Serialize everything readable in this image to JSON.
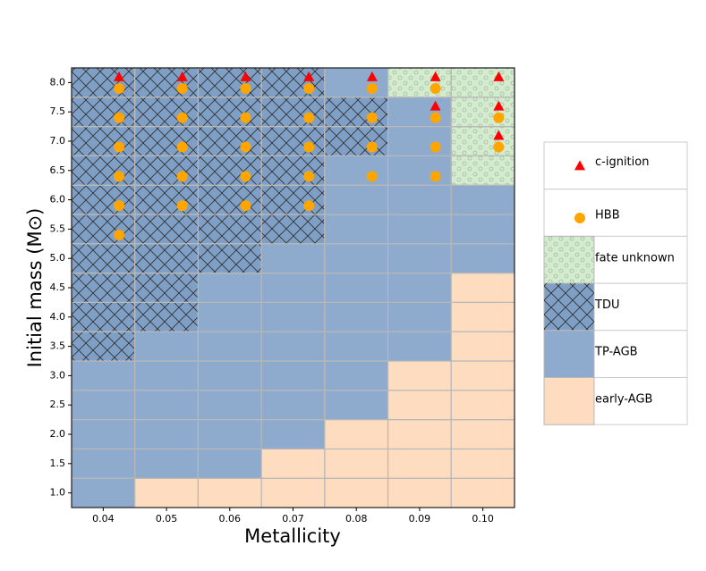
{
  "chart_data": {
    "type": "grid",
    "xlabel": "Metallicity",
    "ylabel": "Initial mass (M⊙)",
    "xlim": [
      0.035,
      0.105
    ],
    "ylim": [
      0.75,
      8.25
    ],
    "xticks": [
      {
        "value": 0.04,
        "label": "0.04"
      },
      {
        "value": 0.05,
        "label": "0.05"
      },
      {
        "value": 0.06,
        "label": "0.06"
      },
      {
        "value": 0.07,
        "label": "0.07"
      },
      {
        "value": 0.08,
        "label": "0.08"
      },
      {
        "value": 0.09,
        "label": "0.09"
      },
      {
        "value": 0.1,
        "label": "0.10"
      }
    ],
    "yticks": [
      {
        "value": 1,
        "label": "1.0"
      },
      {
        "value": 1.5,
        "label": "1.5"
      },
      {
        "value": 2,
        "label": "2.0"
      },
      {
        "value": 2.5,
        "label": "2.5"
      },
      {
        "value": 3,
        "label": "3.0"
      },
      {
        "value": 3.5,
        "label": "3.5"
      },
      {
        "value": 4,
        "label": "4.0"
      },
      {
        "value": 4.5,
        "label": "4.5"
      },
      {
        "value": 5,
        "label": "5.0"
      },
      {
        "value": 5.5,
        "label": "5.5"
      },
      {
        "value": 6,
        "label": "6.0"
      },
      {
        "value": 6.5,
        "label": "6.5"
      },
      {
        "value": 7,
        "label": "7.0"
      },
      {
        "value": 7.5,
        "label": "7.5"
      },
      {
        "value": 8,
        "label": "8.0"
      }
    ],
    "metallicity": [
      0.04,
      0.05,
      0.06,
      0.07,
      0.08,
      0.09,
      0.1
    ],
    "mass": [
      1,
      1.5,
      2,
      2.5,
      3,
      3.5,
      4,
      4.5,
      5,
      5.5,
      6,
      6.5,
      7,
      7.5,
      8
    ],
    "classes": [
      {
        "name": "fate unknown",
        "color": "#d4ebcf",
        "hatch": "dots"
      },
      {
        "name": "TDU",
        "color": "#7f9fc6",
        "hatch": "cross"
      },
      {
        "name": "TP-AGB",
        "color": "#8eabcd"
      },
      {
        "name": "early-AGB",
        "color": "#fddcc0"
      }
    ],
    "cells": [
      [
        "TP-AGB",
        "TP-AGB",
        "TP-AGB",
        "TP-AGB",
        "TP-AGB",
        "TDU",
        "TDU",
        "TDU",
        "TDU",
        "TDU",
        "TDU",
        "TDU",
        "TDU",
        "TDU",
        "TDU"
      ],
      [
        "early-AGB",
        "TP-AGB",
        "TP-AGB",
        "TP-AGB",
        "TP-AGB",
        "TP-AGB",
        "TDU",
        "TDU",
        "TDU",
        "TDU",
        "TDU",
        "TDU",
        "TDU",
        "TDU",
        "TDU"
      ],
      [
        "early-AGB",
        "TP-AGB",
        "TP-AGB",
        "TP-AGB",
        "TP-AGB",
        "TP-AGB",
        "TP-AGB",
        "TP-AGB",
        "TDU",
        "TDU",
        "TDU",
        "TDU",
        "TDU",
        "TDU",
        "TDU"
      ],
      [
        "early-AGB",
        "early-AGB",
        "TP-AGB",
        "TP-AGB",
        "TP-AGB",
        "TP-AGB",
        "TP-AGB",
        "TP-AGB",
        "TP-AGB",
        "TDU",
        "TDU",
        "TDU",
        "TDU",
        "TDU",
        "TDU"
      ],
      [
        "early-AGB",
        "early-AGB",
        "early-AGB",
        "TP-AGB",
        "TP-AGB",
        "TP-AGB",
        "TP-AGB",
        "TP-AGB",
        "TP-AGB",
        "TP-AGB",
        "TP-AGB",
        "TP-AGB",
        "TDU",
        "TDU",
        "TP-AGB"
      ],
      [
        "early-AGB",
        "early-AGB",
        "early-AGB",
        "early-AGB",
        "early-AGB",
        "TP-AGB",
        "TP-AGB",
        "TP-AGB",
        "TP-AGB",
        "TP-AGB",
        "TP-AGB",
        "TP-AGB",
        "TP-AGB",
        "TP-AGB",
        "fate unknown"
      ],
      [
        "early-AGB",
        "early-AGB",
        "early-AGB",
        "early-AGB",
        "early-AGB",
        "early-AGB",
        "early-AGB",
        "early-AGB",
        "TP-AGB",
        "TP-AGB",
        "TP-AGB",
        "fate unknown",
        "fate unknown",
        "fate unknown",
        "fate unknown"
      ]
    ],
    "series": [
      {
        "name": "c-ignition",
        "color": "#ff0000",
        "marker": "triangle",
        "x": [
          0.0425,
          0.0525,
          0.0625,
          0.0725,
          0.0825,
          0.0925,
          0.0925,
          0.1025,
          0.1025,
          0.1025
        ],
        "values": [
          8.1,
          8.1,
          8.1,
          8.1,
          8.1,
          8.1,
          7.6,
          8.1,
          7.6,
          7.1
        ]
      },
      {
        "name": "HBB",
        "color": "#ffa500",
        "marker": "circle",
        "x": [
          0.0425,
          0.0425,
          0.0425,
          0.0425,
          0.0425,
          0.0425,
          0.0525,
          0.0525,
          0.0525,
          0.0525,
          0.0525,
          0.0625,
          0.0625,
          0.0625,
          0.0625,
          0.0625,
          0.0725,
          0.0725,
          0.0725,
          0.0725,
          0.0725,
          0.0825,
          0.0825,
          0.0825,
          0.0825,
          0.0925,
          0.0925,
          0.0925,
          0.0925,
          0.1025,
          0.1025
        ],
        "values": [
          5.4,
          5.9,
          6.4,
          6.9,
          7.4,
          7.9,
          5.9,
          6.4,
          6.9,
          7.4,
          7.9,
          5.9,
          6.4,
          6.9,
          7.4,
          7.9,
          5.9,
          6.4,
          6.9,
          7.4,
          7.9,
          6.4,
          6.9,
          7.4,
          7.9,
          6.4,
          6.9,
          7.4,
          7.9,
          6.9,
          7.4
        ]
      }
    ]
  }
}
